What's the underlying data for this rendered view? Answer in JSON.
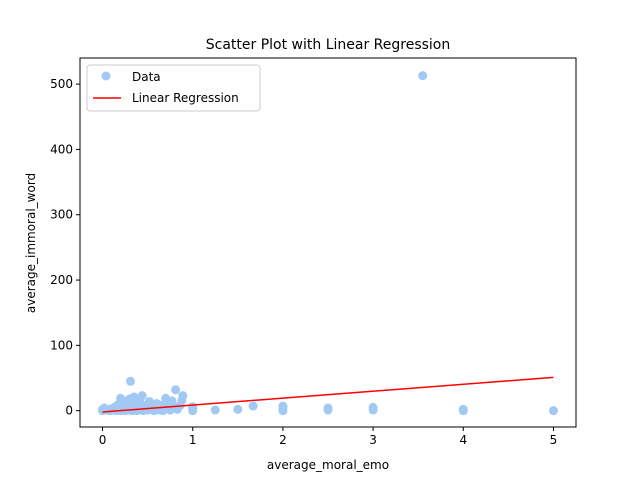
{
  "chart_data": {
    "type": "scatter",
    "title": "Scatter Plot with Linear Regression",
    "xlabel": "average_moral_emo",
    "ylabel": "average_immoral_word",
    "xlim": [
      -0.25,
      5.25
    ],
    "ylim": [
      -25,
      540
    ],
    "xticks": [
      0,
      1,
      2,
      3,
      4,
      5
    ],
    "yticks": [
      0,
      100,
      200,
      300,
      400,
      500
    ],
    "grid": false,
    "legend_position": "top-left",
    "colors": {
      "scatter": "#a1c9f4",
      "regression": "#ff0000"
    },
    "series": [
      {
        "name": "Data",
        "kind": "scatter",
        "points": [
          [
            0.0,
            0
          ],
          [
            0.0,
            2
          ],
          [
            0.02,
            4
          ],
          [
            0.05,
            1
          ],
          [
            0.08,
            0
          ],
          [
            0.1,
            3
          ],
          [
            0.12,
            1
          ],
          [
            0.15,
            0
          ],
          [
            0.15,
            7
          ],
          [
            0.17,
            2
          ],
          [
            0.18,
            10
          ],
          [
            0.2,
            0
          ],
          [
            0.2,
            4
          ],
          [
            0.2,
            19
          ],
          [
            0.22,
            1
          ],
          [
            0.23,
            6
          ],
          [
            0.25,
            0
          ],
          [
            0.25,
            14
          ],
          [
            0.27,
            3
          ],
          [
            0.28,
            9
          ],
          [
            0.3,
            1
          ],
          [
            0.3,
            18
          ],
          [
            0.31,
            45
          ],
          [
            0.32,
            6
          ],
          [
            0.33,
            0
          ],
          [
            0.34,
            12
          ],
          [
            0.35,
            3
          ],
          [
            0.35,
            21
          ],
          [
            0.37,
            8
          ],
          [
            0.38,
            0
          ],
          [
            0.4,
            5
          ],
          [
            0.4,
            16
          ],
          [
            0.42,
            2
          ],
          [
            0.43,
            10
          ],
          [
            0.44,
            23
          ],
          [
            0.45,
            0
          ],
          [
            0.47,
            4
          ],
          [
            0.5,
            1
          ],
          [
            0.5,
            8
          ],
          [
            0.52,
            14
          ],
          [
            0.55,
            2
          ],
          [
            0.57,
            0
          ],
          [
            0.6,
            5
          ],
          [
            0.6,
            11
          ],
          [
            0.63,
            1
          ],
          [
            0.65,
            8
          ],
          [
            0.67,
            0
          ],
          [
            0.7,
            4
          ],
          [
            0.7,
            19
          ],
          [
            0.72,
            10
          ],
          [
            0.75,
            1
          ],
          [
            0.77,
            15
          ],
          [
            0.8,
            6
          ],
          [
            0.81,
            32
          ],
          [
            0.83,
            2
          ],
          [
            0.86,
            8
          ],
          [
            0.88,
            16
          ],
          [
            0.89,
            23
          ],
          [
            1.0,
            0
          ],
          [
            1.0,
            3
          ],
          [
            1.0,
            6
          ],
          [
            1.25,
            1
          ],
          [
            1.5,
            2
          ],
          [
            1.67,
            7
          ],
          [
            2.0,
            0
          ],
          [
            2.0,
            4
          ],
          [
            2.0,
            7
          ],
          [
            2.5,
            1
          ],
          [
            2.5,
            4
          ],
          [
            3.0,
            1
          ],
          [
            3.0,
            5
          ],
          [
            3.55,
            513
          ],
          [
            4.0,
            0
          ],
          [
            4.0,
            2
          ],
          [
            5.0,
            0
          ]
        ]
      },
      {
        "name": "Linear Regression",
        "kind": "line",
        "x": [
          0,
          5
        ],
        "y": [
          -2,
          51
        ]
      }
    ]
  }
}
